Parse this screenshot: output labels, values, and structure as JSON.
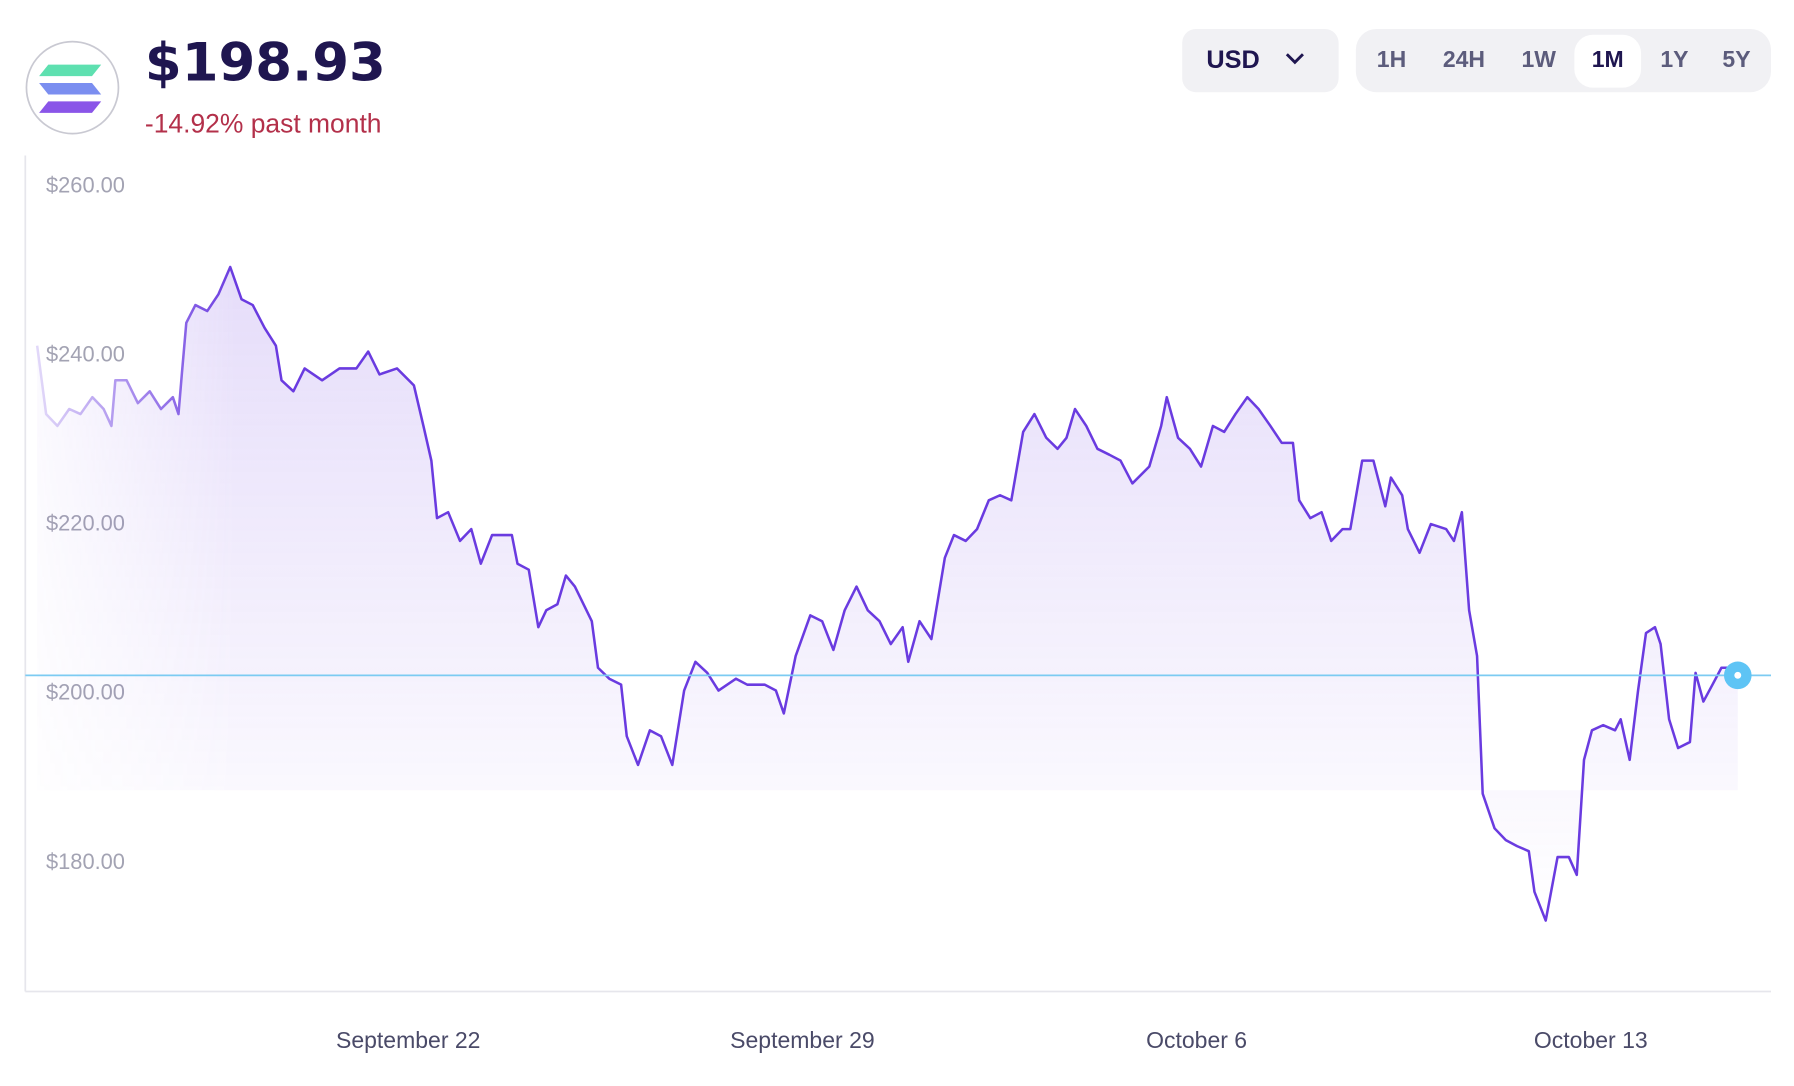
{
  "header": {
    "price": "$198.93",
    "change": "-14.92% past month"
  },
  "controls": {
    "currency": "USD",
    "ranges": [
      "1H",
      "24H",
      "1W",
      "1M",
      "1Y",
      "5Y"
    ],
    "active_range": 3
  },
  "chart_data": {
    "type": "line",
    "color": "#6a3be0",
    "grid": false,
    "x": [
      15.41,
      15.57,
      15.77,
      15.98,
      16.18,
      16.39,
      16.59,
      16.73,
      16.8,
      17.0,
      17.2,
      17.41,
      17.61,
      17.82,
      17.92,
      17.98,
      18.06,
      18.22,
      18.43,
      18.63,
      18.84,
      19.04,
      19.24,
      19.45,
      19.65,
      19.75,
      19.96,
      20.16,
      20.47,
      20.78,
      21.08,
      21.29,
      21.49,
      21.8,
      22.1,
      22.27,
      22.41,
      22.51,
      22.71,
      22.92,
      23.12,
      23.29,
      23.49,
      23.84,
      23.94,
      24.14,
      24.31,
      24.45,
      24.65,
      24.8,
      24.96,
      25.26,
      25.37,
      25.57,
      25.78,
      25.88,
      26.08,
      26.29,
      26.49,
      26.69,
      26.9,
      27.1,
      27.31,
      27.51,
      27.82,
      28.02,
      28.33,
      28.53,
      28.67,
      28.88,
      29.14,
      29.35,
      29.55,
      29.75,
      29.96,
      30.16,
      30.37,
      30.57,
      30.78,
      30.88,
      31.08,
      31.29,
      31.53,
      31.69,
      31.9,
      32.1,
      32.31,
      32.51,
      32.71,
      32.92,
      33.12,
      33.33,
      33.53,
      33.69,
      33.84,
      34.04,
      34.24,
      34.45,
      34.65,
      34.86,
      35.16,
      35.37,
      35.47,
      35.67,
      35.88,
      36.08,
      36.29,
      36.49,
      36.69,
      36.9,
      37.1,
      37.31,
      37.51,
      37.71,
      37.82,
      38.02,
      38.22,
      38.39,
      38.59,
      38.73,
      38.94,
      39.14,
      39.35,
      39.45,
      39.65,
      39.75,
      39.96,
      40.16,
      40.43,
      40.57,
      40.71,
      40.84,
      40.98,
      41.08,
      41.29,
      41.49,
      41.69,
      41.9,
      42.0,
      42.2,
      42.41,
      42.61,
      42.75,
      42.88,
      43.02,
      43.22,
      43.43,
      43.53,
      43.69,
      43.84,
      43.98,
      44.14,
      44.24,
      44.39,
      44.55,
      44.76,
      44.86,
      45.0,
      45.16,
      45.32,
      45.47,
      45.61
    ],
    "values": [
      241.2,
      233.1,
      231.7,
      233.7,
      233.1,
      235.1,
      233.7,
      231.7,
      237.1,
      237.1,
      234.4,
      235.8,
      233.7,
      235.1,
      233.1,
      237.8,
      243.9,
      246.0,
      245.3,
      247.3,
      250.5,
      246.7,
      246.0,
      243.3,
      241.2,
      237.1,
      235.8,
      238.5,
      237.1,
      238.5,
      238.5,
      240.5,
      237.8,
      238.5,
      236.5,
      231.7,
      227.6,
      220.8,
      221.5,
      218.1,
      219.5,
      215.4,
      218.8,
      218.8,
      215.4,
      214.7,
      207.9,
      209.9,
      210.6,
      214.0,
      212.7,
      208.6,
      203.1,
      201.8,
      201.1,
      195.0,
      191.6,
      195.7,
      195.0,
      191.6,
      200.4,
      203.8,
      202.5,
      200.4,
      201.8,
      201.1,
      201.1,
      200.4,
      197.7,
      204.5,
      209.3,
      208.6,
      205.2,
      209.9,
      212.7,
      209.9,
      208.6,
      205.9,
      207.9,
      203.8,
      208.6,
      206.5,
      216.1,
      218.8,
      218.1,
      219.5,
      222.9,
      223.5,
      222.9,
      231.0,
      233.1,
      230.3,
      229.0,
      230.3,
      233.7,
      231.7,
      229.0,
      228.3,
      227.6,
      224.9,
      226.9,
      231.7,
      235.1,
      230.3,
      229.0,
      226.9,
      231.7,
      231.0,
      233.1,
      235.1,
      233.7,
      231.7,
      229.7,
      229.7,
      222.9,
      220.8,
      221.5,
      218.1,
      219.5,
      219.5,
      227.6,
      227.6,
      222.2,
      225.6,
      223.5,
      219.5,
      216.7,
      220.1,
      219.5,
      218.1,
      221.5,
      209.9,
      204.5,
      188.2,
      184.1,
      182.7,
      182.0,
      181.4,
      176.6,
      173.2,
      180.7,
      180.7,
      178.6,
      192.2,
      195.7,
      196.3,
      195.7,
      197.0,
      192.2,
      200.4,
      207.2,
      207.9,
      205.9,
      197.0,
      193.6,
      194.3,
      202.5,
      199.1,
      201.1,
      203.1,
      203.1,
      202.2
    ],
    "xlim": [
      15.2,
      46.2
    ],
    "xticks": [
      {
        "value": 22,
        "label": "September 22"
      },
      {
        "value": 29,
        "label": "September 29"
      },
      {
        "value": 36,
        "label": "October 6"
      },
      {
        "value": 43,
        "label": "October 13"
      }
    ],
    "ylim": [
      164.8,
      263.7
    ],
    "yticks": [
      {
        "value": 180,
        "label": "$180.00"
      },
      {
        "value": 200,
        "label": "$200.00"
      },
      {
        "value": 220,
        "label": "$220.00"
      },
      {
        "value": 240,
        "label": "$240.00"
      },
      {
        "value": 260,
        "label": "$260.00"
      }
    ]
  }
}
